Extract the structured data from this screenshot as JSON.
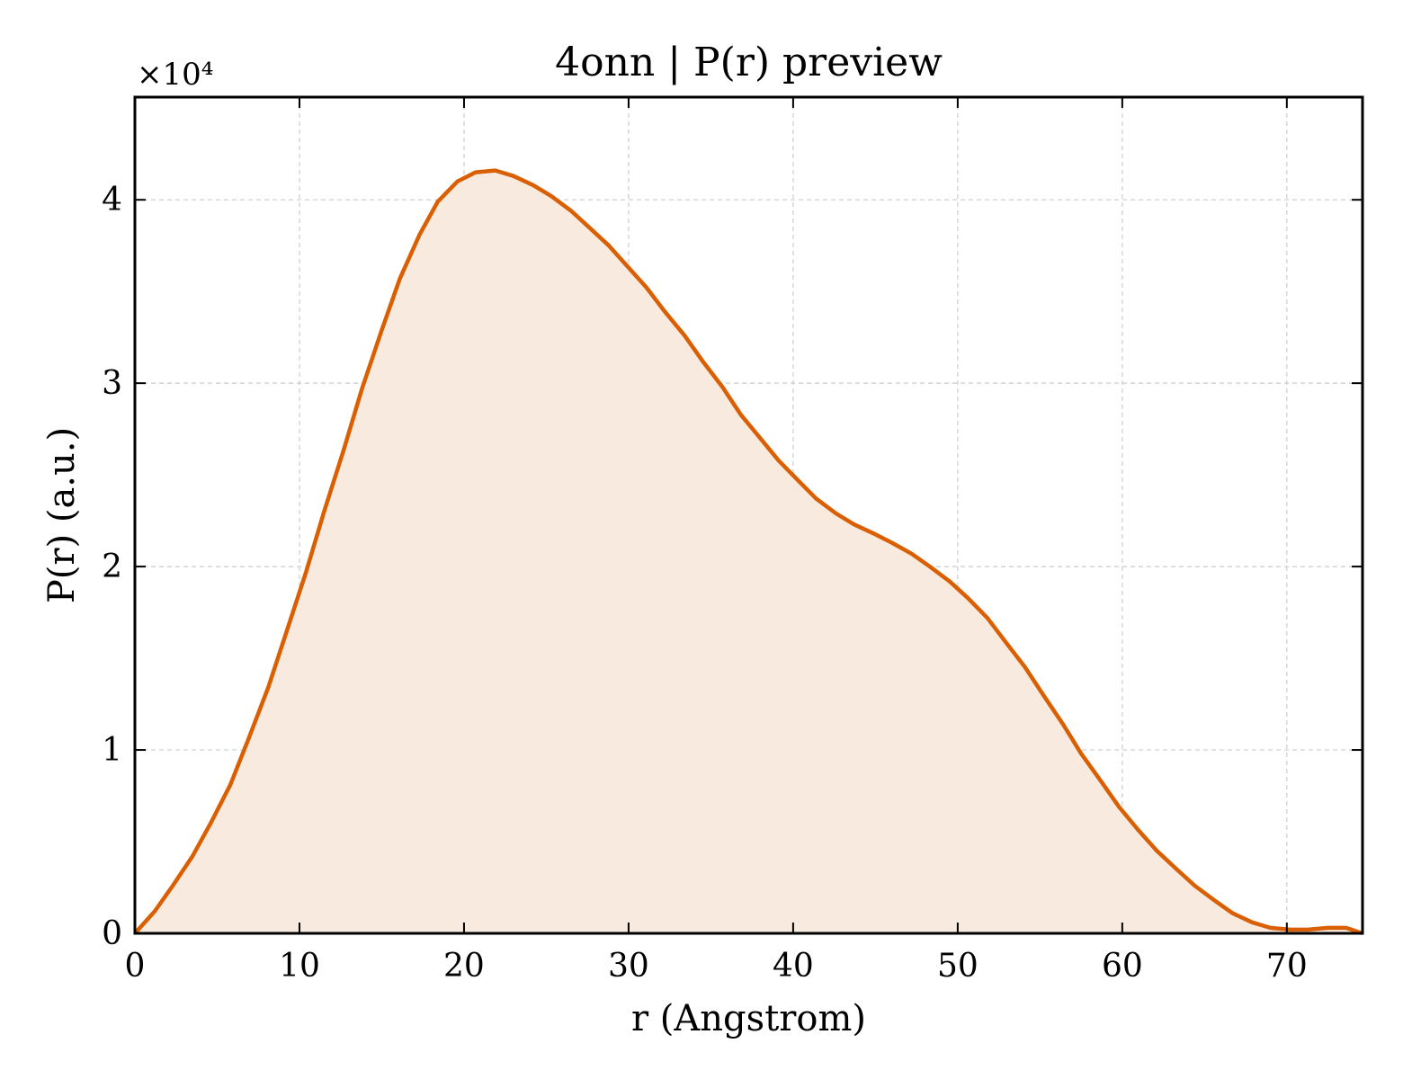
{
  "chart_data": {
    "type": "area",
    "title": "4onn | P(r) preview",
    "xlabel": "r (Angstrom)",
    "ylabel": "P(r) (a.u.)",
    "y_offset_label": "×10⁴",
    "y_scale": 10000,
    "xlim": [
      0,
      74.6
    ],
    "ylim": [
      0,
      45600
    ],
    "xticks": [
      0,
      10,
      20,
      30,
      40,
      50,
      60,
      70
    ],
    "yticks": [
      0,
      10000,
      20000,
      30000,
      40000
    ],
    "ytick_labels": [
      "0",
      "1",
      "2",
      "3",
      "4"
    ],
    "grid": true,
    "line_color": "#d95f02",
    "fill_color": "#f9eadf",
    "series": [
      {
        "x": [
          0,
          1.2,
          2.3,
          3.5,
          4.6,
          5.8,
          6.9,
          8.1,
          9.2,
          10.4,
          11.5,
          12.7,
          13.8,
          15.0,
          16.1,
          17.3,
          18.4,
          19.6,
          20.7,
          21.9,
          23.0,
          24.2,
          25.3,
          26.5,
          27.6,
          28.8,
          29.9,
          31.1,
          32.2,
          33.4,
          34.5,
          35.7,
          36.8,
          38.0,
          39.1,
          40.3,
          41.4,
          42.6,
          43.7,
          44.9,
          46.0,
          47.2,
          48.3,
          49.5,
          50.6,
          51.8,
          52.9,
          54.1,
          55.2,
          56.4,
          57.5,
          58.7,
          59.8,
          61.0,
          62.1,
          63.3,
          64.4,
          65.6,
          66.7,
          67.9,
          69.0,
          70.2,
          71.3,
          72.5,
          73.6,
          74.6
        ],
        "y": [
          0,
          1200,
          2600,
          4200,
          6000,
          8100,
          10600,
          13400,
          16400,
          19700,
          23000,
          26400,
          29700,
          32900,
          35700,
          38100,
          39900,
          41000,
          41500,
          41600,
          41300,
          40800,
          40200,
          39400,
          38500,
          37500,
          36400,
          35200,
          33900,
          32600,
          31200,
          29800,
          28300,
          27000,
          25800,
          24700,
          23700,
          22900,
          22300,
          21800,
          21300,
          20700,
          20000,
          19200,
          18300,
          17200,
          15900,
          14500,
          13000,
          11400,
          9800,
          8300,
          6900,
          5600,
          4500,
          3500,
          2600,
          1800,
          1100,
          600,
          300,
          200,
          200,
          300,
          300,
          0
        ]
      }
    ]
  }
}
